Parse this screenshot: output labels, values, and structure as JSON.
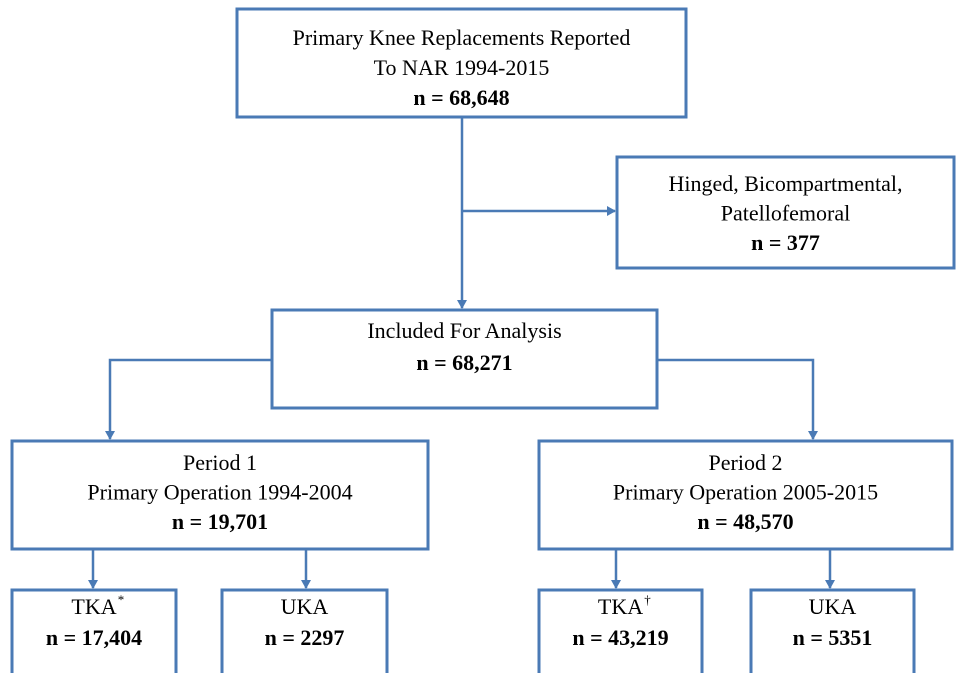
{
  "nodes": [
    {
      "lines": [
        "Primary Knee Replacements Reported",
        "To NAR 1994-2015"
      ],
      "count": "n = 68,648"
    },
    {
      "lines": [
        "Hinged, Bicompartmental,",
        "Patellofemoral"
      ],
      "count": "n = 377"
    },
    {
      "lines": [
        "Included For Analysis"
      ],
      "count": "n = 68,271"
    },
    {
      "lines": [
        "Period 1",
        "Primary Operation 1994-2004"
      ],
      "count": "n = 19,701"
    },
    {
      "lines": [
        "Period 2",
        "Primary Operation 2005-2015"
      ],
      "count": "n = 48,570"
    },
    {
      "lines": [
        "TKA"
      ],
      "marker": "*",
      "count": "n = 17,404"
    },
    {
      "lines": [
        "UKA"
      ],
      "count": "n = 2297"
    },
    {
      "lines": [
        "TKA"
      ],
      "marker": "†",
      "count": "n = 43,219"
    },
    {
      "lines": [
        "UKA"
      ],
      "count": "n = 5351"
    }
  ]
}
